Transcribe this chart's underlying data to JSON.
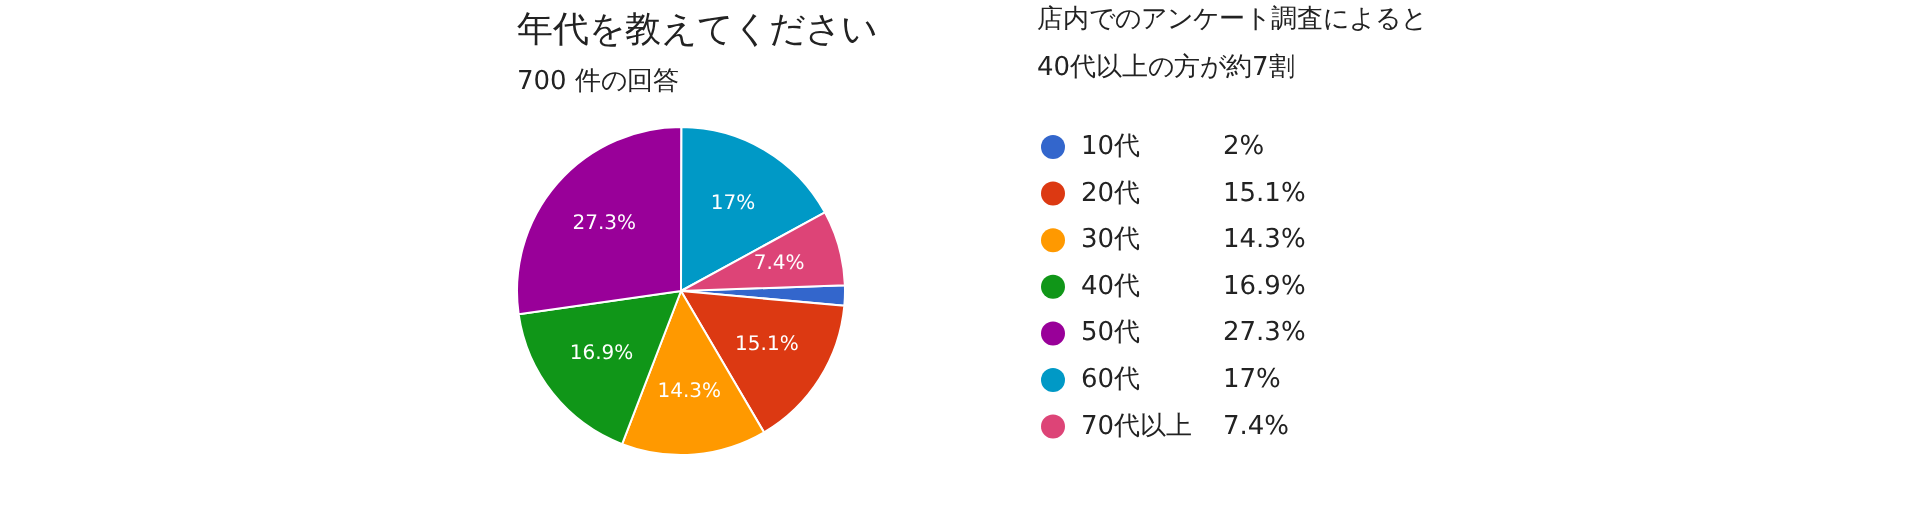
{
  "chart_data": {
    "type": "pie",
    "title": "年代を教えてください",
    "subtitle": "700 件の回答",
    "annotations": [
      "店内でのアンケート調査によると",
      "40代以上の方が約7割"
    ],
    "categories": [
      "10代",
      "20代",
      "30代",
      "40代",
      "50代",
      "60代",
      "70代以上"
    ],
    "values": [
      2,
      15.1,
      14.3,
      16.9,
      27.3,
      17,
      7.4
    ],
    "value_labels": [
      "2%",
      "15.1%",
      "14.3%",
      "16.9%",
      "27.3%",
      "17%",
      "7.4%"
    ],
    "colors": [
      "#3366cc",
      "#dc3912",
      "#ff9900",
      "#109618",
      "#990099",
      "#0099c6",
      "#dd4477"
    ],
    "legend": "right"
  }
}
